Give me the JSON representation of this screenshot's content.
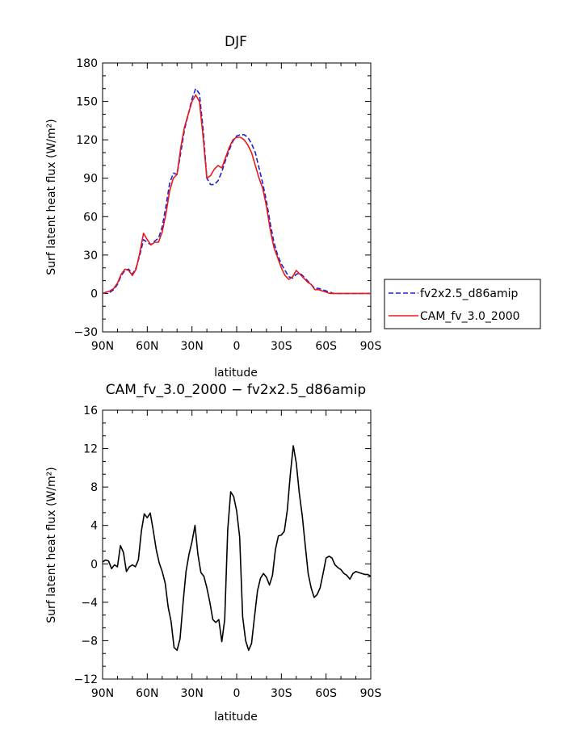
{
  "chart_data": [
    {
      "type": "line",
      "title": "DJF",
      "xlabel": "latitude",
      "ylabel": "Surf latent heat flux (W/m²)",
      "xlim": [
        90,
        -90
      ],
      "ylim": [
        -30,
        180
      ],
      "xticks": [
        90,
        60,
        30,
        0,
        -30,
        -60,
        -90
      ],
      "xtick_labels": [
        "90N",
        "60N",
        "30N",
        "0",
        "30S",
        "60S",
        "90S"
      ],
      "yticks": [
        -30,
        0,
        30,
        60,
        90,
        120,
        150,
        180
      ],
      "ytick_labels": [
        "−30",
        "0",
        "30",
        "60",
        "90",
        "120",
        "150",
        "180"
      ],
      "grid": false,
      "legend": "right",
      "series": [
        {
          "name": "fv2x2.5_d86amip",
          "color": "#1f1fd6",
          "dash": "dashed",
          "x": [
            90,
            87.5,
            85,
            82.5,
            80,
            77.5,
            75,
            72.5,
            70,
            67.5,
            65,
            62.5,
            60,
            57.5,
            55,
            52.5,
            50,
            47.5,
            45,
            42.5,
            40,
            37.5,
            35,
            32.5,
            30,
            27.5,
            25,
            22.5,
            20,
            17.5,
            15,
            12.5,
            10,
            7.5,
            5,
            2.5,
            0,
            -2.5,
            -5,
            -7.5,
            -10,
            -12.5,
            -15,
            -17.5,
            -20,
            -22.5,
            -25,
            -27.5,
            -30,
            -32.5,
            -35,
            -37.5,
            -40,
            -42.5,
            -45,
            -47.5,
            -50,
            -52.5,
            -55,
            -57.5,
            -60,
            -62.5,
            -65,
            -67.5,
            -70,
            -72.5,
            -75,
            -77.5,
            -80,
            -82.5,
            -85,
            -87.5,
            -90
          ],
          "y": [
            0,
            1,
            1,
            3,
            7,
            14,
            18,
            19,
            15,
            20,
            30,
            42,
            40,
            38,
            41,
            43,
            52,
            68,
            86,
            94,
            93,
            110,
            128,
            140,
            152,
            160,
            156,
            128,
            90,
            85,
            85,
            88,
            95,
            104,
            112,
            119,
            123,
            124,
            124,
            122,
            117,
            110,
            98,
            86,
            72,
            55,
            40,
            30,
            23,
            18,
            13,
            12,
            15,
            16,
            13,
            10,
            7,
            4,
            4,
            3,
            2,
            1,
            0,
            0,
            0,
            0,
            0,
            0,
            0,
            0,
            0,
            0,
            0
          ]
        },
        {
          "name": "CAM_fv_3.0_2000",
          "color": "#e8191c",
          "dash": "solid",
          "x": [
            90,
            87.5,
            85,
            82.5,
            80,
            77.5,
            75,
            72.5,
            70,
            67.5,
            65,
            62.5,
            60,
            57.5,
            55,
            52.5,
            50,
            47.5,
            45,
            42.5,
            40,
            37.5,
            35,
            32.5,
            30,
            27.5,
            25,
            22.5,
            20,
            17.5,
            15,
            12.5,
            10,
            7.5,
            5,
            2.5,
            0,
            -2.5,
            -5,
            -7.5,
            -10,
            -12.5,
            -15,
            -17.5,
            -20,
            -22.5,
            -25,
            -27.5,
            -30,
            -32.5,
            -35,
            -37.5,
            -40,
            -42.5,
            -45,
            -47.5,
            -50,
            -52.5,
            -55,
            -57.5,
            -60,
            -62.5,
            -65,
            -67.5,
            -70,
            -72.5,
            -75,
            -77.5,
            -80,
            -82.5,
            -85,
            -87.5,
            -90
          ],
          "y": [
            0,
            1,
            2,
            4,
            8,
            15,
            19,
            18,
            14,
            19,
            32,
            47,
            42,
            38,
            40,
            40,
            48,
            62,
            80,
            90,
            93,
            114,
            130,
            140,
            150,
            155,
            150,
            122,
            90,
            92,
            97,
            100,
            98,
            106,
            114,
            120,
            122,
            122,
            120,
            116,
            110,
            100,
            90,
            82,
            68,
            50,
            36,
            28,
            20,
            14,
            11,
            13,
            18,
            15,
            12,
            9,
            7,
            3,
            3,
            2,
            1,
            0,
            0,
            0,
            0,
            0,
            0,
            0,
            0,
            0,
            0,
            0,
            0
          ]
        }
      ]
    },
    {
      "type": "line",
      "title": "CAM_fv_3.0_2000 − fv2x2.5_d86amip",
      "xlabel": "latitude",
      "ylabel": "Surf latent heat flux (W/m²)",
      "xlim": [
        90,
        -90
      ],
      "ylim": [
        -12,
        16
      ],
      "xticks": [
        90,
        60,
        30,
        0,
        -30,
        -60,
        -90
      ],
      "xtick_labels": [
        "90N",
        "60N",
        "30N",
        "0",
        "30S",
        "60S",
        "90S"
      ],
      "yticks": [
        -12,
        -8,
        -4,
        0,
        4,
        8,
        12,
        16
      ],
      "ytick_labels": [
        "−12",
        "−8",
        "−4",
        "0",
        "4",
        "8",
        "12",
        "16"
      ],
      "grid": false,
      "series": [
        {
          "color": "#000000",
          "x": [
            90,
            88,
            86,
            84,
            82,
            80,
            78,
            76,
            74,
            72,
            70,
            68,
            66,
            64,
            62,
            60,
            58,
            56,
            54,
            52,
            50,
            48,
            46,
            44,
            42,
            40,
            38,
            36,
            34,
            32,
            30,
            28,
            26,
            24,
            22,
            20,
            18,
            16,
            14,
            12,
            10,
            8,
            6,
            4,
            2,
            0,
            -2,
            -4,
            -6,
            -8,
            -10,
            -12,
            -14,
            -16,
            -18,
            -20,
            -22,
            -24,
            -26,
            -28,
            -30,
            -32,
            -34,
            -36,
            -38,
            -40,
            -42,
            -44,
            -46,
            -48,
            -50,
            -52,
            -54,
            -56,
            -58,
            -60,
            -62,
            -64,
            -66,
            -68,
            -70,
            -72,
            -74,
            -76,
            -78,
            -80,
            -82,
            -84,
            -86,
            -88,
            -90
          ],
          "y": [
            0.2,
            0.4,
            0.3,
            -0.5,
            -0.1,
            -0.3,
            1.9,
            1.2,
            -0.8,
            -0.3,
            -0.1,
            -0.3,
            0.4,
            3.4,
            5.2,
            4.8,
            5.3,
            3.5,
            1.5,
            0.1,
            -0.8,
            -2.0,
            -4.5,
            -6.0,
            -8.7,
            -9.0,
            -7.8,
            -4.1,
            -0.8,
            1.0,
            2.3,
            4.0,
            1.0,
            -0.9,
            -1.3,
            -2.5,
            -4.0,
            -5.8,
            -6.1,
            -5.8,
            -8.1,
            -5.8,
            3.5,
            7.5,
            7.0,
            5.5,
            2.8,
            -5.5,
            -8.0,
            -9.0,
            -8.3,
            -5.5,
            -2.8,
            -1.5,
            -1.0,
            -1.4,
            -2.2,
            -1.2,
            1.5,
            2.9,
            3.0,
            3.4,
            5.6,
            9.3,
            12.3,
            10.5,
            7.4,
            5.0,
            2.0,
            -1.0,
            -2.5,
            -3.5,
            -3.2,
            -2.5,
            -1.0,
            0.6,
            0.8,
            0.6,
            -0.1,
            -0.4,
            -0.6,
            -1.0,
            -1.2,
            -1.6,
            -1.0,
            -0.8,
            -0.9,
            -1.0,
            -1.1,
            -1.1,
            -1.3
          ]
        }
      ]
    }
  ]
}
